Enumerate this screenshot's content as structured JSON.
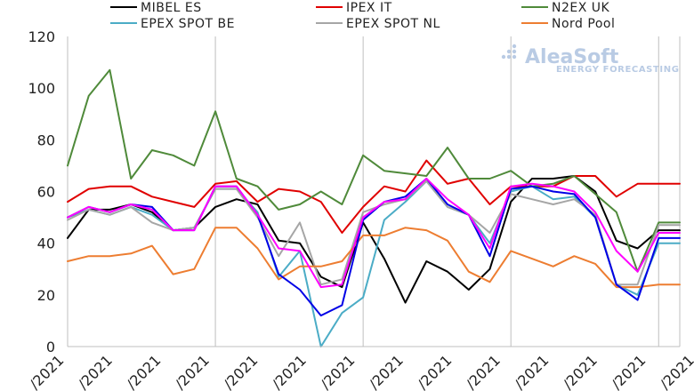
{
  "brand": {
    "name": "AleaSoft",
    "tagline": "ENERGY FORECASTING",
    "color": "#b9cbe4"
  },
  "chart_data": {
    "type": "line",
    "title": "",
    "xlabel": "",
    "ylabel": "",
    "ylim": [
      0,
      120
    ],
    "yticks": [
      0,
      20,
      40,
      60,
      80,
      100,
      120
    ],
    "x_tick_labels": [
      "/2021",
      "/2021",
      "/2021",
      "/2021",
      "/2021",
      "/2021",
      "/2021",
      "/2021",
      "/2021",
      "/2021",
      "/2021",
      "/2021",
      "/2021",
      "/2021",
      "/2021"
    ],
    "grid": "vertical gridlines",
    "legend_position": "top",
    "n_points": 30,
    "series": [
      {
        "name": "MIBEL ES",
        "color": "#000000",
        "values": [
          42,
          53,
          53,
          55,
          52,
          45,
          46,
          54,
          57,
          55,
          41,
          40,
          27,
          23,
          48,
          34,
          17,
          33,
          29,
          22,
          30,
          56,
          65,
          65,
          66,
          60,
          41,
          38,
          45,
          45
        ]
      },
      {
        "name": "IPEX IT",
        "color": "#e00000",
        "values": [
          56,
          61,
          62,
          62,
          58,
          56,
          54,
          63,
          64,
          56,
          61,
          60,
          56,
          44,
          54,
          62,
          60,
          72,
          63,
          65,
          55,
          62,
          62,
          62,
          66,
          66,
          58,
          63,
          63,
          63
        ]
      },
      {
        "name": "N2EX UK",
        "color": "#4f8a3a",
        "values": [
          70,
          97,
          107,
          65,
          76,
          74,
          70,
          91,
          65,
          62,
          53,
          55,
          60,
          55,
          74,
          68,
          67,
          66,
          77,
          65,
          65,
          68,
          62,
          63,
          66,
          59,
          52,
          29,
          48,
          48
        ]
      },
      {
        "name": "EPEX SPOT BE",
        "color": "#4bacc6",
        "values": [
          50,
          53,
          51,
          54,
          51,
          45,
          46,
          61,
          61,
          52,
          27,
          37,
          0,
          13,
          19,
          49,
          56,
          64,
          54,
          51,
          40,
          60,
          62,
          57,
          58,
          50,
          24,
          20,
          40,
          40
        ]
      },
      {
        "name": "EPEX SPOT NL",
        "color": "#a6a6a6",
        "values": [
          49,
          53,
          51,
          54,
          48,
          45,
          46,
          61,
          61,
          50,
          35,
          48,
          24,
          26,
          52,
          55,
          57,
          64,
          54,
          51,
          44,
          59,
          57,
          55,
          57,
          51,
          24,
          24,
          47,
          47
        ]
      },
      {
        "name": "Nord Pool",
        "color": "#ed7d31",
        "values": [
          33,
          35,
          35,
          36,
          39,
          28,
          30,
          46,
          46,
          38,
          26,
          31,
          31,
          33,
          43,
          43,
          46,
          45,
          41,
          29,
          25,
          37,
          34,
          31,
          35,
          32,
          23,
          23,
          24,
          24
        ]
      },
      {
        "name": "",
        "color": "#0000e6",
        "legend": false,
        "values": [
          50,
          54,
          52,
          55,
          54,
          45,
          45,
          62,
          62,
          51,
          28,
          22,
          12,
          16,
          49,
          56,
          58,
          65,
          55,
          51,
          35,
          61,
          62,
          60,
          59,
          50,
          24,
          18,
          42,
          42
        ]
      },
      {
        "name": "",
        "color": "#ff00ff",
        "legend": false,
        "values": [
          50,
          54,
          52,
          55,
          53,
          45,
          45,
          62,
          62,
          51,
          38,
          37,
          23,
          24,
          50,
          56,
          57,
          65,
          57,
          51,
          38,
          62,
          63,
          62,
          60,
          52,
          37,
          29,
          44,
          44
        ]
      }
    ]
  }
}
